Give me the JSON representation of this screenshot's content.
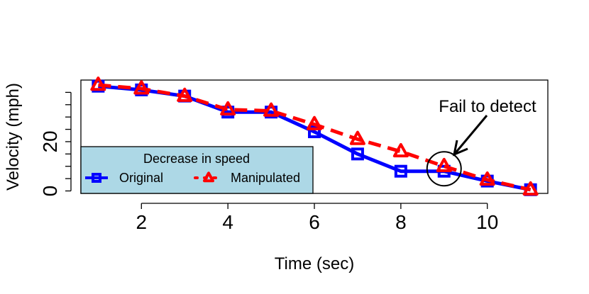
{
  "chart_data": {
    "type": "line",
    "title": "",
    "xlabel": "Time (sec)",
    "ylabel": "Velocity (mph)",
    "xlim": [
      0.6,
      11.4
    ],
    "ylim": [
      -1,
      45
    ],
    "x_ticks": [
      2,
      4,
      6,
      8,
      10
    ],
    "x_tick_labels": [
      "2",
      "4",
      "6",
      "8",
      "10"
    ],
    "y_ticks": [
      0,
      5,
      10,
      15,
      20,
      25,
      30,
      35,
      40
    ],
    "y_tick_labels": [
      "0",
      "",
      "",
      "",
      "20",
      "",
      "",
      "",
      ""
    ],
    "x": [
      1,
      2,
      3,
      4,
      5,
      6,
      7,
      8,
      9,
      10,
      11
    ],
    "series": [
      {
        "name": "Original",
        "color": "#0000ff",
        "marker": "square",
        "line_style": "solid",
        "values": [
          42.5,
          41,
          38.5,
          32,
          32,
          24,
          15,
          8,
          8,
          4,
          0.5
        ]
      },
      {
        "name": "Manipulated",
        "color": "#ff0000",
        "marker": "triangle",
        "line_style": "dashed",
        "values": [
          43,
          41.5,
          38.5,
          33,
          32.5,
          27,
          21,
          16,
          10,
          4.5,
          0.5
        ]
      }
    ],
    "legend": {
      "title": "Decrease in speed",
      "position": "bottom-left",
      "background": "#add8e6"
    },
    "annotation": {
      "text": "Fail to detect",
      "target_x": 9,
      "target_y": 9
    },
    "grid": false
  }
}
